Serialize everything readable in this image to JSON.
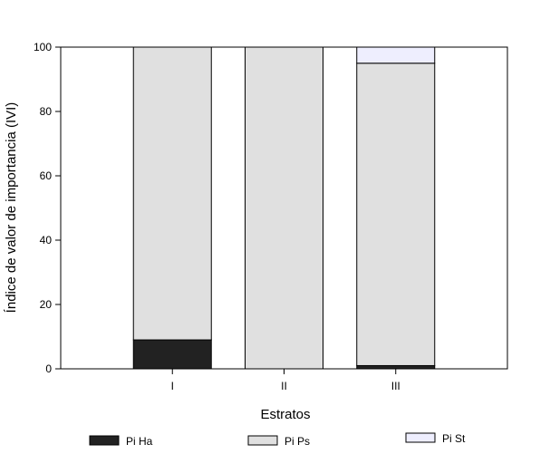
{
  "chart_data": {
    "type": "bar",
    "stacked": true,
    "categories": [
      "I",
      "II",
      "III"
    ],
    "series": [
      {
        "name": "Pi Ha",
        "values": [
          9,
          0,
          1
        ],
        "color": "#222222"
      },
      {
        "name": "Pi Ps",
        "values": [
          91,
          100,
          94
        ],
        "color": "#e0e0e0"
      },
      {
        "name": "Pi St",
        "values": [
          0,
          0,
          5
        ],
        "color": "#eeeefe"
      }
    ],
    "xlabel": "Estratos",
    "ylabel": "Índice de valor de importancia (IVI)",
    "ylim": [
      0,
      100
    ],
    "yticks": [
      0,
      20,
      40,
      60,
      80,
      100
    ],
    "grid": false,
    "legend": "bottom"
  }
}
